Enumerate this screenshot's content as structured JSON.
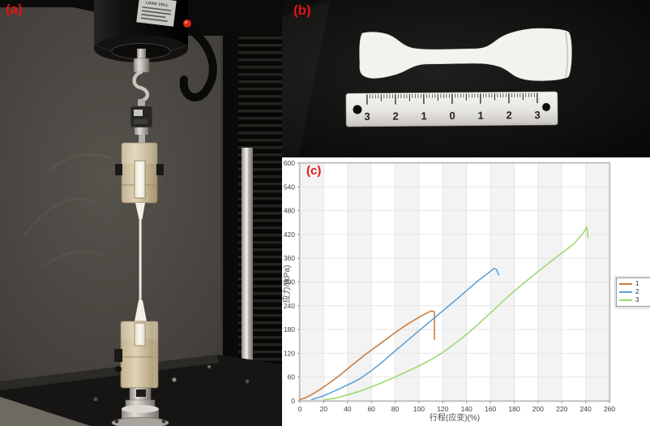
{
  "panels": {
    "a": {
      "label": "(a)"
    },
    "b": {
      "label": "(b)"
    },
    "c": {
      "label": "(c)"
    }
  },
  "panel_a": {
    "load_cell_label": "LOAD CELL"
  },
  "panel_b": {
    "ruler_numbers": [
      "3",
      "2",
      "1",
      "0",
      "1",
      "2",
      "3"
    ]
  },
  "chart_data": {
    "type": "line",
    "title": "",
    "xlabel": "行程(应变)(%)",
    "ylabel": "应力/(kPa)",
    "xlim": [
      0,
      260
    ],
    "ylim": [
      0,
      600
    ],
    "xticks": [
      0,
      20,
      40,
      60,
      80,
      100,
      120,
      140,
      160,
      180,
      200,
      220,
      240,
      260
    ],
    "yticks": [
      0,
      60,
      120,
      180,
      240,
      300,
      360,
      420,
      480,
      540,
      600
    ],
    "grid": true,
    "plot_bg_stripes": true,
    "stripe_color": "#f3f3f3",
    "grid_color": "#e6e6e6",
    "frame_color": "#a9a9a9",
    "legend_position": "right",
    "series": [
      {
        "name": "1",
        "color": "#c97e41",
        "points": [
          [
            0,
            3
          ],
          [
            5,
            8
          ],
          [
            10,
            16
          ],
          [
            15,
            25
          ],
          [
            20,
            35
          ],
          [
            27,
            50
          ],
          [
            35,
            68
          ],
          [
            45,
            93
          ],
          [
            55,
            117
          ],
          [
            61,
            130
          ],
          [
            70,
            150
          ],
          [
            80,
            172
          ],
          [
            90,
            193
          ],
          [
            100,
            211
          ],
          [
            105,
            219
          ],
          [
            109,
            225
          ],
          [
            111,
            227
          ],
          [
            113,
            224
          ],
          [
            113,
            155
          ]
        ]
      },
      {
        "name": "2",
        "color": "#5ba3d9",
        "points": [
          [
            10,
            3
          ],
          [
            20,
            13
          ],
          [
            30,
            26
          ],
          [
            40,
            40
          ],
          [
            50,
            55
          ],
          [
            60,
            76
          ],
          [
            70,
            100
          ],
          [
            80,
            126
          ],
          [
            91,
            154
          ],
          [
            100,
            177
          ],
          [
            110,
            202
          ],
          [
            120,
            227
          ],
          [
            130,
            252
          ],
          [
            140,
            278
          ],
          [
            150,
            304
          ],
          [
            158,
            322
          ],
          [
            163,
            334
          ],
          [
            165,
            332
          ],
          [
            166,
            325
          ],
          [
            167,
            318
          ]
        ]
      },
      {
        "name": "3",
        "color": "#9ed96f",
        "points": [
          [
            20,
            2
          ],
          [
            30,
            7
          ],
          [
            40,
            15
          ],
          [
            50,
            24
          ],
          [
            60,
            35
          ],
          [
            70,
            47
          ],
          [
            80,
            60
          ],
          [
            90,
            74
          ],
          [
            100,
            88
          ],
          [
            110,
            104
          ],
          [
            120,
            122
          ],
          [
            130,
            144
          ],
          [
            140,
            168
          ],
          [
            150,
            194
          ],
          [
            160,
            222
          ],
          [
            170,
            250
          ],
          [
            180,
            277
          ],
          [
            190,
            302
          ],
          [
            200,
            326
          ],
          [
            210,
            350
          ],
          [
            220,
            373
          ],
          [
            230,
            396
          ],
          [
            237,
            420
          ],
          [
            240,
            433
          ],
          [
            241,
            438
          ],
          [
            242,
            412
          ]
        ]
      }
    ]
  }
}
